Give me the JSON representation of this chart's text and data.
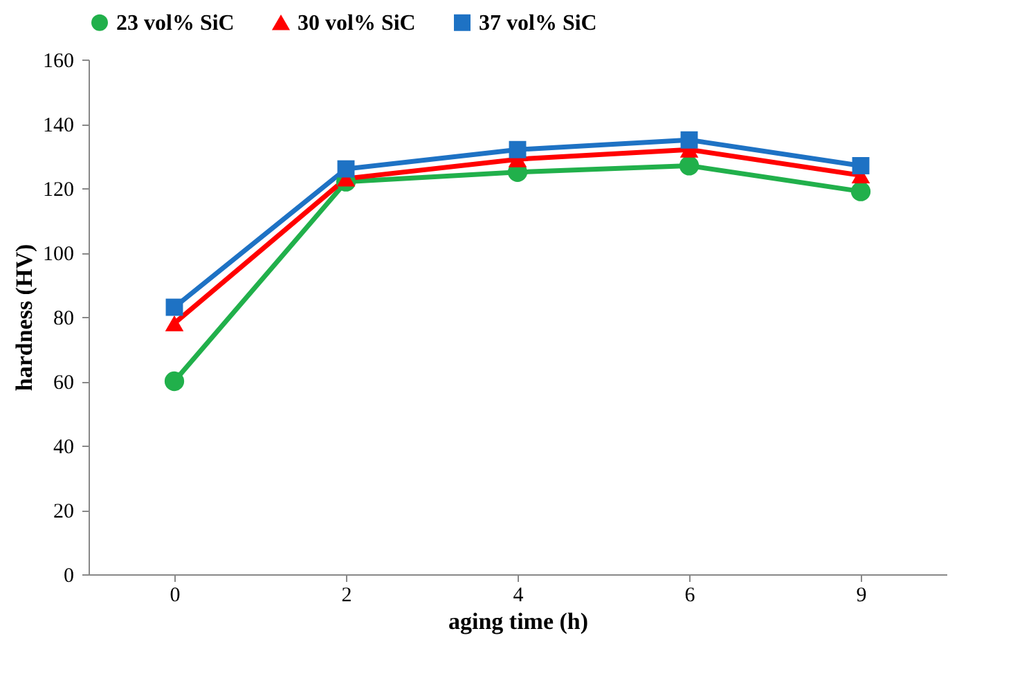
{
  "chart_data": {
    "type": "line",
    "xlabel": "aging time (h)",
    "ylabel": "hardness (HV)",
    "categories": [
      "0",
      "2",
      "4",
      "6",
      "9"
    ],
    "ylim": [
      0,
      160
    ],
    "yticks": [
      0,
      20,
      40,
      60,
      80,
      100,
      120,
      140,
      160
    ],
    "grid": false,
    "legend": "top",
    "series": [
      {
        "name": "23 vol% SiC",
        "color": "#21b04b",
        "marker": "circle",
        "values": [
          60,
          122,
          125,
          127,
          119
        ]
      },
      {
        "name": "30 vol% SiC",
        "color": "#ff0000",
        "marker": "triangle",
        "values": [
          78,
          123,
          129,
          132,
          124
        ]
      },
      {
        "name": "37 vol% SiC",
        "color": "#1e72c4",
        "marker": "square",
        "values": [
          83,
          126,
          132,
          135,
          127
        ]
      }
    ]
  }
}
